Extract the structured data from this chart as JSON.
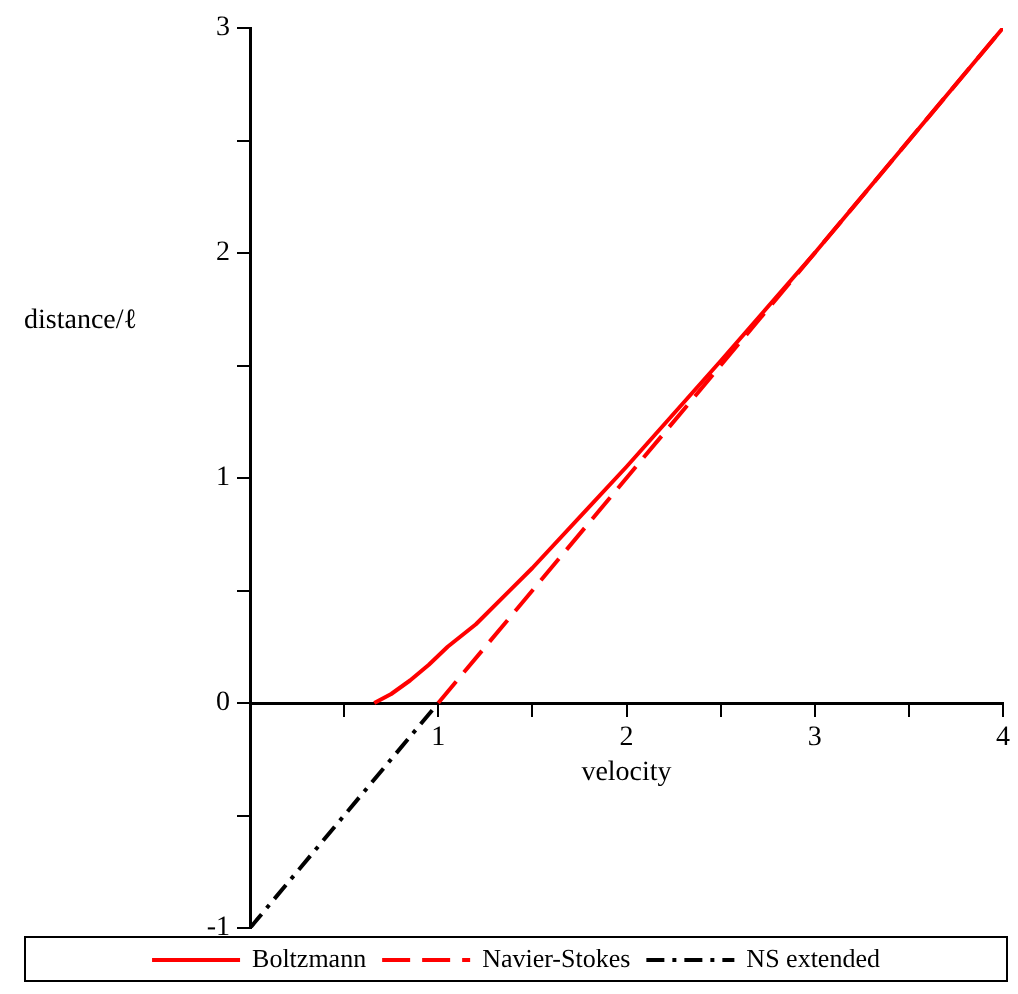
{
  "chart_data": {
    "type": "line",
    "xlabel": "velocity",
    "ylabel": "distance/ℓ",
    "xlim": [
      0,
      4
    ],
    "ylim": [
      -1,
      3
    ],
    "xticks": [
      {
        "value": 0.5,
        "label": null
      },
      1,
      {
        "value": 1.5,
        "label": null
      },
      2,
      {
        "value": 2.5,
        "label": null
      },
      3,
      {
        "value": 3.5,
        "label": null
      },
      4
    ],
    "yticks": [
      -1,
      {
        "value": -0.5,
        "label": null
      },
      0,
      {
        "value": 0.5,
        "label": null
      },
      1,
      {
        "value": 1.5,
        "label": null
      },
      2,
      {
        "value": 2.5,
        "label": null
      },
      3
    ],
    "grid": false,
    "legend": "bottom",
    "marker": "none",
    "series": [
      {
        "name": "Boltzmann",
        "color": "#ff0000",
        "line_style": "solid",
        "x": [
          0.66,
          0.75,
          0.85,
          0.95,
          1.05,
          1.2,
          1.5,
          2,
          2.5,
          3,
          3.5,
          4
        ],
        "values": [
          0,
          0.04,
          0.1,
          0.17,
          0.25,
          0.35,
          0.6,
          1.05,
          1.52,
          2.0,
          2.5,
          3
        ]
      },
      {
        "name": "Navier-Stokes",
        "color": "#ff0000",
        "line_style": "dashed",
        "x": [
          1,
          4
        ],
        "values": [
          0,
          3
        ]
      },
      {
        "name": "NS extended",
        "color": "#000000",
        "line_style": "dashdot",
        "x": [
          0,
          1
        ],
        "values": [
          -1,
          0
        ]
      }
    ]
  }
}
